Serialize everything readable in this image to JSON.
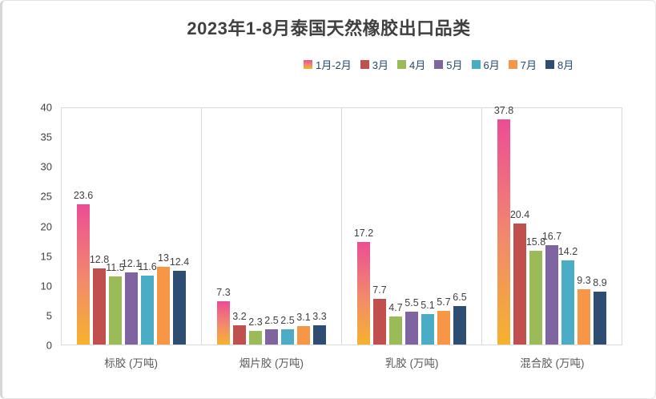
{
  "title": "2023年1-8月泰国天然橡胶出口品类",
  "colors": {
    "axis_line": "#D9D9D9",
    "value_label_text": "#3F3F3F",
    "legend_text": "#24466B",
    "category_text": "#595959",
    "title_text": "#404040"
  },
  "chart_data": {
    "type": "bar",
    "title": "2023年1-8月泰国天然橡胶出口品类",
    "categories": [
      "标胶 (万吨)",
      "烟片胶 (万吨)",
      "乳胶 (万吨)",
      "混合胶 (万吨)"
    ],
    "series": [
      {
        "name": "1月-2月",
        "gradient": [
          "#EC4D95",
          "#F28B6B",
          "#F6B22D"
        ],
        "values": [
          23.6,
          7.3,
          17.2,
          37.8
        ]
      },
      {
        "name": "3月",
        "color": "#C0504D",
        "values": [
          12.8,
          3.2,
          7.7,
          20.4
        ]
      },
      {
        "name": "4月",
        "color": "#9BBB59",
        "values": [
          11.5,
          2.3,
          4.7,
          15.8
        ]
      },
      {
        "name": "5月",
        "color": "#8064A2",
        "values": [
          12.1,
          2.5,
          5.5,
          16.7
        ]
      },
      {
        "name": "6月",
        "color": "#4BACC6",
        "values": [
          11.6,
          2.5,
          5.1,
          14.2
        ]
      },
      {
        "name": "7月",
        "color": "#F79646",
        "values": [
          13,
          3.1,
          5.7,
          9.3
        ]
      },
      {
        "name": "8月",
        "color": "#2E4D72",
        "values": [
          12.4,
          3.3,
          6.5,
          8.9
        ]
      }
    ],
    "ylim": [
      0,
      40
    ],
    "y_ticks": [
      0,
      5,
      10,
      15,
      20,
      25,
      30,
      35,
      40
    ],
    "ylabel": "",
    "xlabel": "",
    "legend_position": "top-center",
    "grid": "plot-border and vertical category separators only, no horizontal gridlines",
    "value_labels": "shown above each bar"
  }
}
